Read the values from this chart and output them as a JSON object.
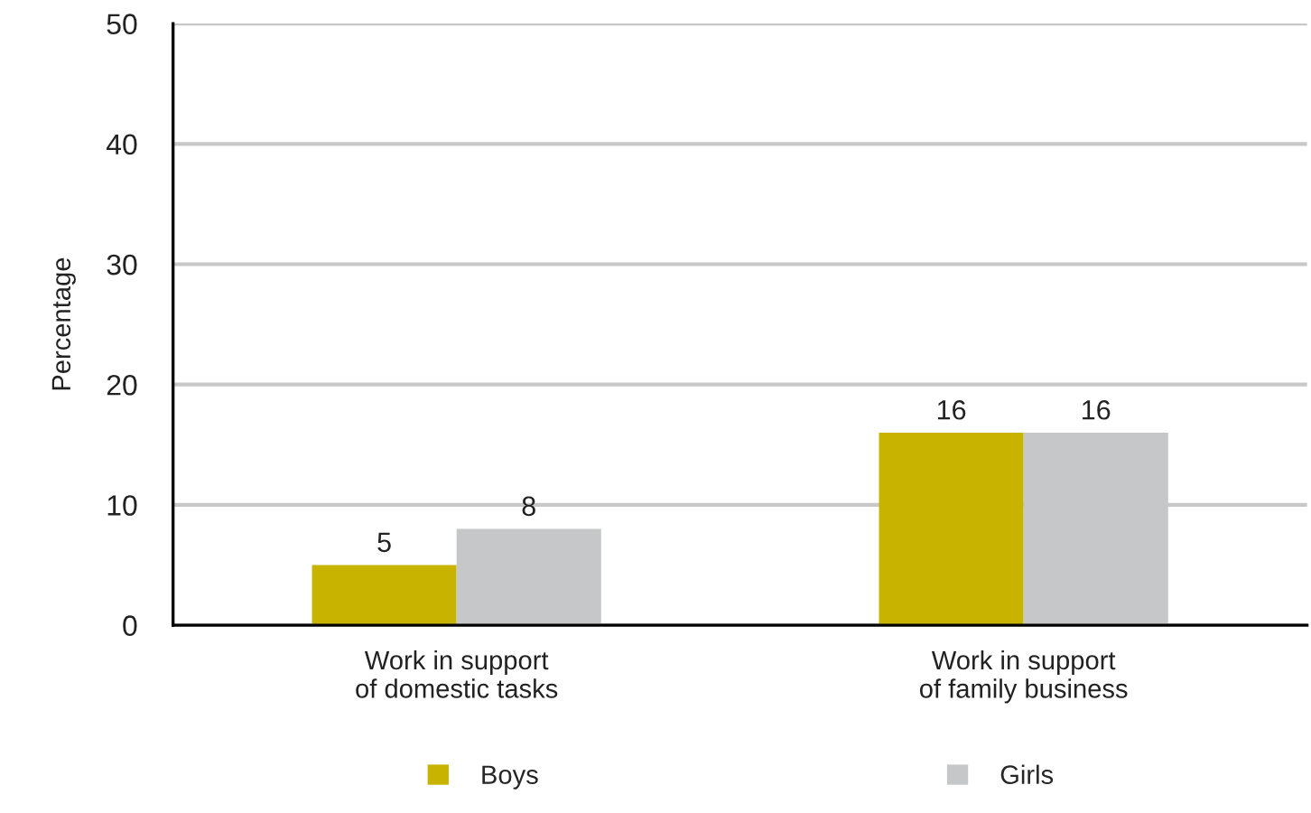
{
  "chart_data": {
    "type": "bar",
    "categories": [
      "Work in support\nof domestic tasks",
      "Work in support\nof family business"
    ],
    "ylabel": "Percentage",
    "series": [
      {
        "name": "Boys",
        "color": "#c8b400",
        "values": [
          5,
          16
        ]
      },
      {
        "name": "Girls",
        "color": "#c6c7c9",
        "values": [
          8,
          16
        ]
      }
    ],
    "ylim": [
      0,
      50
    ],
    "yticks": [
      0,
      10,
      20,
      30,
      40,
      50
    ],
    "grid": "y",
    "legend": "bottom",
    "data_labels": true
  }
}
